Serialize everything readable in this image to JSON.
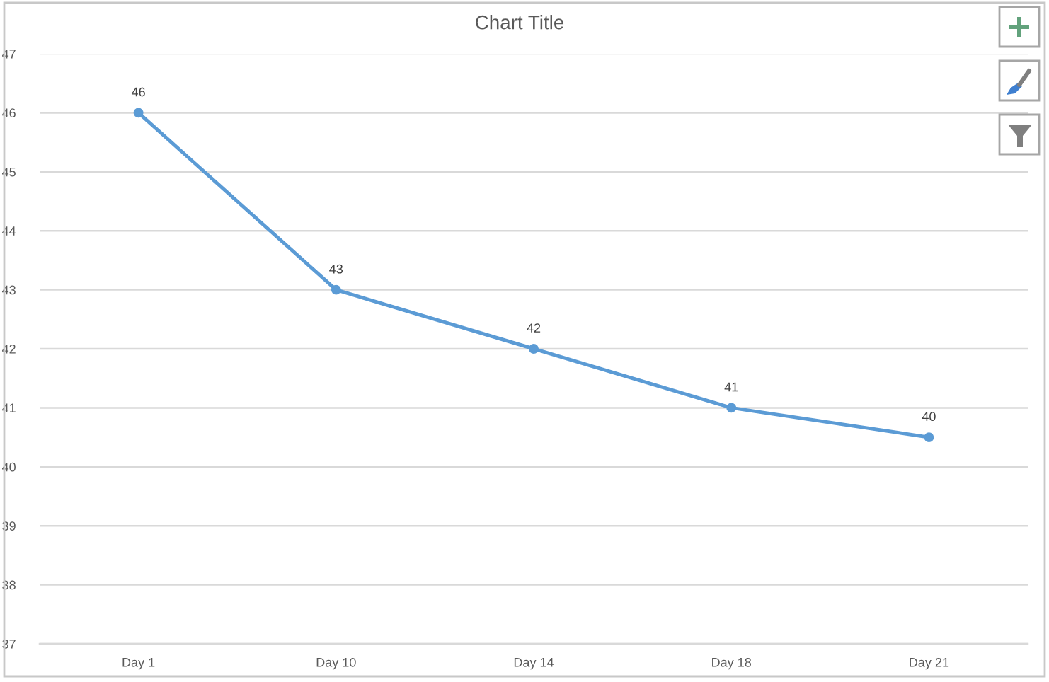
{
  "chart_data": {
    "type": "line",
    "title": "Chart Title",
    "categories": [
      "Day 1",
      "Day 10",
      "Day 14",
      "Day 18",
      "Day 21"
    ],
    "series": [
      {
        "color": "#5b9bd5",
        "values": [
          46,
          43,
          42,
          41,
          40.5
        ],
        "value_labels": [
          "46",
          "43",
          "42",
          "41",
          "40"
        ]
      }
    ],
    "ylim": [
      37,
      47
    ],
    "yticks": [
      37,
      38,
      39,
      40,
      41,
      42,
      43,
      44,
      45,
      46,
      47
    ],
    "grid": "y",
    "marker": "circle",
    "line_style": "solid"
  }
}
